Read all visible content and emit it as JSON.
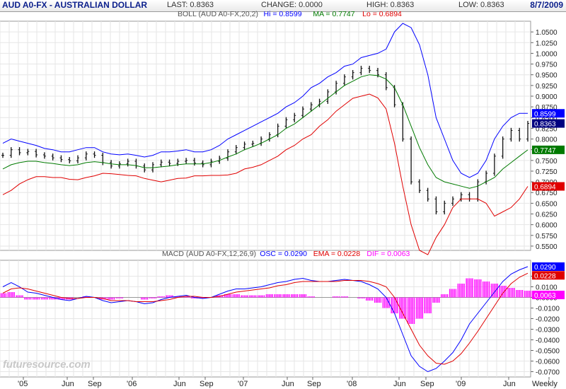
{
  "header": {
    "title": "AUD A0-FX - AUSTRALIAN DOLLAR",
    "last": "LAST: 0.8363",
    "change": "CHANGE: 0.0000",
    "high": "HIGH: 0.8363",
    "low": "LOW: 0.8363",
    "date": "8/7/2009"
  },
  "watermark": "futuresource.com",
  "chart_data": [
    {
      "type": "line",
      "title": "BOLL (AUD A0-FX,20,2)",
      "legend": [
        {
          "text": "Hi = 0.8599",
          "color": "#0000ff"
        },
        {
          "text": "MA = 0.7747",
          "color": "#007a00"
        },
        {
          "text": "Lo = 0.6894",
          "color": "#e00000"
        }
      ],
      "ylim": [
        0.54,
        1.075
      ],
      "y_ticks": [
        "0.5500",
        "0.5750",
        "0.6000",
        "0.6250",
        "0.6500",
        "0.6750",
        "0.7000",
        "0.7250",
        "0.7500",
        "0.7750",
        "0.8000",
        "0.8250",
        "0.8500",
        "0.8750",
        "0.9000",
        "0.9250",
        "0.9500",
        "0.9750",
        "1.0000",
        "1.0250",
        "1.0500"
      ],
      "x_ticks": [
        "'05",
        "Jun",
        "Sep",
        "'06",
        "Jun",
        "Sep",
        "'07",
        "Jun",
        "Sep",
        "'08",
        "Jun",
        "Sep",
        "'09",
        "Jun",
        "Weekly"
      ],
      "series": [
        {
          "name": "Price",
          "values": [
            0.762,
            0.775,
            0.768,
            0.771,
            0.763,
            0.76,
            0.756,
            0.752,
            0.749,
            0.756,
            0.765,
            0.762,
            0.745,
            0.737,
            0.742,
            0.748,
            0.737,
            0.728,
            0.74,
            0.746,
            0.743,
            0.748,
            0.75,
            0.744,
            0.74,
            0.748,
            0.755,
            0.77,
            0.78,
            0.788,
            0.79,
            0.8,
            0.81,
            0.83,
            0.845,
            0.855,
            0.87,
            0.88,
            0.888,
            0.91,
            0.93,
            0.945,
            0.955,
            0.965,
            0.96,
            0.95,
            0.92,
            0.88,
            0.8,
            0.7,
            0.68,
            0.66,
            0.63,
            0.65,
            0.66,
            0.67,
            0.66,
            0.7,
            0.72,
            0.76,
            0.8,
            0.82,
            0.8,
            0.8363
          ]
        },
        {
          "name": "Hi",
          "values": [
            0.79,
            0.8,
            0.795,
            0.79,
            0.785,
            0.778,
            0.775,
            0.77,
            0.77,
            0.775,
            0.78,
            0.78,
            0.77,
            0.765,
            0.763,
            0.765,
            0.762,
            0.758,
            0.762,
            0.77,
            0.77,
            0.772,
            0.775,
            0.77,
            0.77,
            0.775,
            0.785,
            0.8,
            0.81,
            0.82,
            0.83,
            0.84,
            0.85,
            0.86,
            0.875,
            0.885,
            0.9,
            0.92,
            0.93,
            0.945,
            0.955,
            0.97,
            0.975,
            0.99,
            0.995,
            1.0,
            1.01,
            1.05,
            1.07,
            1.06,
            1.02,
            0.95,
            0.85,
            0.8,
            0.75,
            0.72,
            0.71,
            0.72,
            0.75,
            0.8,
            0.83,
            0.85,
            0.86,
            0.8599
          ]
        },
        {
          "name": "MA",
          "values": [
            0.73,
            0.74,
            0.745,
            0.748,
            0.748,
            0.745,
            0.743,
            0.74,
            0.738,
            0.74,
            0.745,
            0.747,
            0.745,
            0.742,
            0.74,
            0.74,
            0.738,
            0.733,
            0.733,
            0.735,
            0.737,
            0.74,
            0.742,
            0.742,
            0.742,
            0.745,
            0.75,
            0.758,
            0.765,
            0.775,
            0.782,
            0.79,
            0.8,
            0.81,
            0.825,
            0.835,
            0.85,
            0.865,
            0.88,
            0.895,
            0.91,
            0.925,
            0.935,
            0.945,
            0.95,
            0.948,
            0.94,
            0.92,
            0.88,
            0.83,
            0.78,
            0.74,
            0.71,
            0.7,
            0.695,
            0.69,
            0.685,
            0.69,
            0.7,
            0.71,
            0.73,
            0.745,
            0.76,
            0.7747
          ]
        },
        {
          "name": "Lo",
          "values": [
            0.67,
            0.68,
            0.695,
            0.705,
            0.712,
            0.712,
            0.71,
            0.71,
            0.706,
            0.705,
            0.71,
            0.714,
            0.72,
            0.719,
            0.717,
            0.715,
            0.714,
            0.708,
            0.704,
            0.7,
            0.704,
            0.708,
            0.709,
            0.714,
            0.714,
            0.715,
            0.715,
            0.716,
            0.72,
            0.73,
            0.734,
            0.74,
            0.75,
            0.76,
            0.775,
            0.785,
            0.8,
            0.81,
            0.83,
            0.845,
            0.865,
            0.88,
            0.895,
            0.9,
            0.905,
            0.896,
            0.87,
            0.79,
            0.69,
            0.6,
            0.54,
            0.53,
            0.57,
            0.6,
            0.64,
            0.66,
            0.66,
            0.66,
            0.65,
            0.62,
            0.63,
            0.64,
            0.66,
            0.6894
          ]
        }
      ]
    },
    {
      "type": "line",
      "title": "MACD (AUD A0-FX,12,26,9)",
      "legend": [
        {
          "text": "OSC = 0.0290",
          "color": "#0000ff"
        },
        {
          "text": "EMA = 0.0228",
          "color": "#e00000"
        },
        {
          "text": "DIF = 0.0063",
          "color": "#ff00ff"
        }
      ],
      "ylim": [
        -0.075,
        0.035
      ],
      "y_ticks": [
        "-0.0700",
        "-0.0600",
        "-0.0500",
        "-0.0400",
        "-0.0300",
        "-0.0200",
        "-0.0100",
        "0.0000",
        "0.0100",
        "0.0200"
      ],
      "series": [
        {
          "name": "OSC",
          "values": [
            0.01,
            0.014,
            0.01,
            0.005,
            0.004,
            0.002,
            0.0,
            -0.002,
            -0.003,
            -0.001,
            0.001,
            0.0,
            -0.003,
            -0.005,
            -0.004,
            -0.003,
            -0.004,
            -0.006,
            -0.005,
            -0.002,
            0.0,
            0.001,
            0.002,
            0.0,
            -0.001,
            0.0,
            0.003,
            0.006,
            0.008,
            0.008,
            0.009,
            0.01,
            0.012,
            0.014,
            0.015,
            0.017,
            0.018,
            0.016,
            0.015,
            0.015,
            0.016,
            0.017,
            0.016,
            0.015,
            0.012,
            0.008,
            0.0,
            -0.015,
            -0.035,
            -0.055,
            -0.065,
            -0.07,
            -0.067,
            -0.06,
            -0.052,
            -0.04,
            -0.025,
            -0.015,
            -0.005,
            0.005,
            0.015,
            0.022,
            0.026,
            0.029
          ]
        },
        {
          "name": "EMA",
          "values": [
            0.004,
            0.008,
            0.009,
            0.008,
            0.006,
            0.004,
            0.002,
            0.0,
            -0.001,
            -0.001,
            0.0,
            0.0,
            -0.001,
            -0.003,
            -0.003,
            -0.003,
            -0.004,
            -0.004,
            -0.004,
            -0.003,
            -0.002,
            0.0,
            0.001,
            0.001,
            0.0,
            0.0,
            0.001,
            0.003,
            0.005,
            0.006,
            0.007,
            0.008,
            0.009,
            0.011,
            0.012,
            0.014,
            0.015,
            0.015,
            0.015,
            0.015,
            0.015,
            0.016,
            0.016,
            0.016,
            0.015,
            0.013,
            0.01,
            0.0,
            -0.015,
            -0.03,
            -0.045,
            -0.055,
            -0.062,
            -0.063,
            -0.06,
            -0.053,
            -0.043,
            -0.032,
            -0.02,
            -0.008,
            0.004,
            0.013,
            0.019,
            0.0228
          ]
        },
        {
          "name": "DIF",
          "values": [
            0.004,
            0.005,
            0.002,
            -0.002,
            -0.002,
            -0.002,
            -0.002,
            -0.002,
            -0.002,
            0.0,
            0.001,
            0.0,
            -0.002,
            -0.002,
            -0.001,
            0.0,
            0.0,
            -0.002,
            -0.001,
            0.001,
            0.002,
            0.001,
            0.001,
            -0.001,
            -0.001,
            0.0,
            0.002,
            0.003,
            0.003,
            0.002,
            0.002,
            0.002,
            0.003,
            0.003,
            0.003,
            0.003,
            0.003,
            0.001,
            0.0,
            0.0,
            0.001,
            0.001,
            0.0,
            -0.001,
            -0.003,
            -0.005,
            -0.01,
            -0.015,
            -0.02,
            -0.025,
            -0.02,
            -0.015,
            -0.005,
            0.003,
            0.008,
            0.013,
            0.018,
            0.017,
            0.015,
            0.013,
            0.011,
            0.009,
            0.007,
            0.0063
          ]
        }
      ]
    }
  ]
}
